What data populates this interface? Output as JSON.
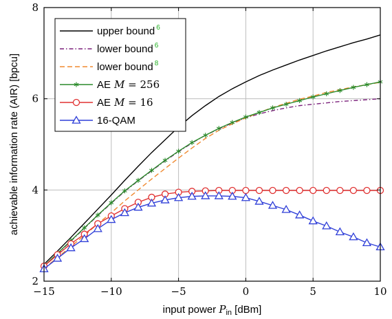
{
  "chart_data": {
    "type": "line",
    "xlabel": "input power P_in [dBm]",
    "xlabel_parts": [
      "input power ",
      "P",
      "in",
      " [dBm]"
    ],
    "ylabel": "achievable information rate (AIR) [bpcu]",
    "xlim": [
      -15,
      10
    ],
    "ylim": [
      2,
      8
    ],
    "xticks": [
      -15,
      -10,
      -5,
      0,
      5,
      10
    ],
    "yticks": [
      2,
      4,
      6,
      8
    ],
    "xtick_labels": [
      "−15",
      "−10",
      "−5",
      "0",
      "5",
      "10"
    ],
    "ytick_labels": [
      "2",
      "4",
      "6",
      "8"
    ],
    "grid": true,
    "legend_position": "top-left",
    "series": [
      {
        "name": "upper bound 6",
        "label": "upper bound",
        "ref": "6",
        "color": "#000000",
        "style": "solid",
        "marker": "none",
        "x": [
          -15,
          -14,
          -13,
          -12,
          -11,
          -10,
          -9,
          -8,
          -7,
          -6,
          -5,
          -4,
          -3,
          -2,
          -1,
          0,
          1,
          2,
          3,
          4,
          5,
          6,
          7,
          8,
          9,
          10
        ],
        "y": [
          2.37,
          2.66,
          2.96,
          3.27,
          3.58,
          3.89,
          4.21,
          4.52,
          4.82,
          5.1,
          5.38,
          5.63,
          5.85,
          6.05,
          6.22,
          6.37,
          6.51,
          6.63,
          6.74,
          6.85,
          6.95,
          7.05,
          7.14,
          7.23,
          7.31,
          7.4
        ]
      },
      {
        "name": "lower bound 6",
        "label": "lower bound",
        "ref": "6",
        "color": "#7a1f7a",
        "style": "dashdot",
        "marker": "none",
        "x": [
          -15,
          -14,
          -13,
          -12,
          -11,
          -10,
          -9,
          -8,
          -7,
          -6,
          -5,
          -4,
          -3,
          -2,
          -1,
          0,
          1,
          2,
          3,
          4,
          5,
          6,
          7,
          8,
          9,
          10
        ],
        "y": [
          2.33,
          2.6,
          2.88,
          3.16,
          3.44,
          3.71,
          3.97,
          4.2,
          4.42,
          4.64,
          4.84,
          5.03,
          5.2,
          5.34,
          5.47,
          5.58,
          5.67,
          5.74,
          5.8,
          5.85,
          5.88,
          5.91,
          5.94,
          5.96,
          5.98,
          6.0
        ]
      },
      {
        "name": "lower bound 8",
        "label": "lower bound",
        "ref": "8",
        "color": "#f0892f",
        "style": "dashed",
        "marker": "none",
        "x": [
          -15,
          -14,
          -13,
          -12,
          -11,
          -10,
          -9,
          -8,
          -7,
          -6,
          -5,
          -4,
          -3,
          -2,
          -1,
          0,
          1,
          2,
          3,
          4,
          5,
          6,
          7,
          8,
          9,
          10
        ],
        "y": [
          2.28,
          2.52,
          2.76,
          3.0,
          3.26,
          3.5,
          3.76,
          4.0,
          4.24,
          4.47,
          4.7,
          4.92,
          5.13,
          5.31,
          5.45,
          5.58,
          5.7,
          5.81,
          5.9,
          5.99,
          6.06,
          6.14,
          6.2,
          6.26,
          6.31,
          6.36
        ]
      },
      {
        "name": "AE M = 256",
        "label": "AE",
        "math": "M = 256",
        "color": "#2a8a2a",
        "style": "solid",
        "marker": "star",
        "x": [
          -15,
          -14,
          -13,
          -12,
          -11,
          -10,
          -9,
          -8,
          -7,
          -6,
          -5,
          -4,
          -3,
          -2,
          -1,
          0,
          1,
          2,
          3,
          4,
          5,
          6,
          7,
          8,
          9,
          10
        ],
        "y": [
          2.33,
          2.61,
          2.89,
          3.17,
          3.45,
          3.72,
          3.98,
          4.21,
          4.43,
          4.65,
          4.85,
          5.04,
          5.2,
          5.35,
          5.48,
          5.6,
          5.7,
          5.8,
          5.88,
          5.96,
          6.04,
          6.11,
          6.18,
          6.25,
          6.31,
          6.37
        ]
      },
      {
        "name": "AE M = 16",
        "label": "AE",
        "math": "M = 16",
        "color": "#e03030",
        "style": "solid",
        "marker": "circle",
        "x": [
          -15,
          -14,
          -13,
          -12,
          -11,
          -10,
          -9,
          -8,
          -7,
          -6,
          -5,
          -4,
          -3,
          -2,
          -1,
          0,
          1,
          2,
          3,
          4,
          5,
          6,
          7,
          8,
          9,
          10
        ],
        "y": [
          2.33,
          2.58,
          2.82,
          3.03,
          3.26,
          3.43,
          3.59,
          3.73,
          3.84,
          3.91,
          3.95,
          3.97,
          3.98,
          3.99,
          3.99,
          3.99,
          3.99,
          3.99,
          3.99,
          3.99,
          3.99,
          3.99,
          3.99,
          3.99,
          3.99,
          3.99
        ]
      },
      {
        "name": "16-QAM",
        "label": "16-QAM",
        "color": "#2f3fd8",
        "style": "solid",
        "marker": "triangle",
        "x": [
          -15,
          -14,
          -13,
          -12,
          -11,
          -10,
          -9,
          -8,
          -7,
          -6,
          -5,
          -4,
          -3,
          -2,
          -1,
          0,
          1,
          2,
          3,
          4,
          5,
          6,
          7,
          8,
          9,
          10
        ],
        "y": [
          2.27,
          2.5,
          2.73,
          2.93,
          3.15,
          3.35,
          3.5,
          3.62,
          3.71,
          3.78,
          3.83,
          3.86,
          3.87,
          3.87,
          3.86,
          3.83,
          3.75,
          3.66,
          3.57,
          3.45,
          3.32,
          3.21,
          3.08,
          2.97,
          2.84,
          2.75
        ]
      }
    ]
  }
}
